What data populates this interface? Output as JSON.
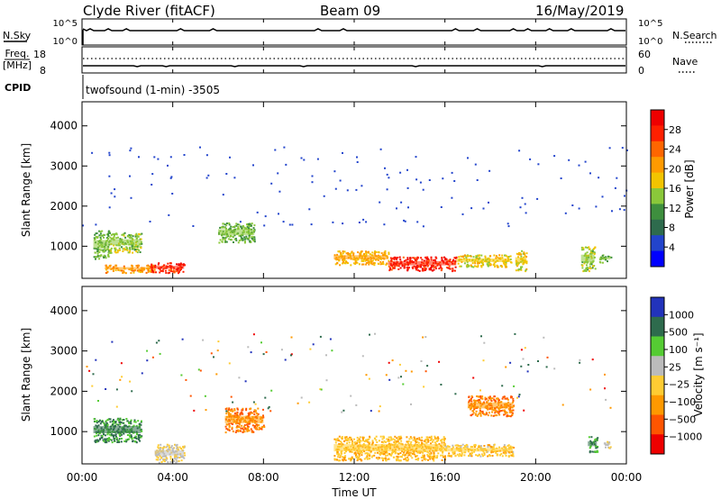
{
  "header": {
    "station": "Clyde River (fitACF)",
    "beam": "Beam 09",
    "date": "16/May/2019"
  },
  "summary_panels": {
    "nsky_label": "N.Sky",
    "nsearch_label": "N.Search",
    "freq_label_line1": "Freq.",
    "freq_label_line2": "[MHz]",
    "nave_label": "Nave",
    "cpid_label": "CPID",
    "cpid_text": "twofsound (1-min) -3505",
    "count_ticks": [
      "10^5",
      "10^0"
    ],
    "freq_ticks": [
      "18",
      "8"
    ],
    "nave_ticks": [
      "60",
      "0"
    ]
  },
  "time_axis": {
    "label": "Time UT",
    "ticks": [
      "00:00",
      "04:00",
      "08:00",
      "12:00",
      "16:00",
      "20:00",
      "00:00"
    ]
  },
  "colors": {
    "power_scale": [
      "#0000ff",
      "#2244cc",
      "#2e6b4d",
      "#3e8f3e",
      "#8ac83a",
      "#f2c400",
      "#ff9a00",
      "#ff6600",
      "#ff2000",
      "#ee0000"
    ],
    "velocity_scale": [
      "#ee0000",
      "#ff5500",
      "#ff9900",
      "#ffcc33",
      "#bbbbbb",
      "#55cc33",
      "#2e6b4d",
      "#2233bb"
    ]
  },
  "chart_data": [
    {
      "type": "heatmap",
      "panel": "power",
      "ylabel": "Slant Range [km]",
      "xlabel": "Time UT",
      "xlim_hours": [
        0,
        24
      ],
      "ylim_km": [
        200,
        4600
      ],
      "yticks": [
        1000,
        2000,
        3000,
        4000
      ],
      "colorbar_label": "Power [dB]",
      "colorbar_ticks": [
        "28",
        "24",
        "20",
        "16",
        "12",
        "8",
        "4"
      ],
      "colorbar_range": [
        0,
        30
      ],
      "regions": [
        {
          "t": [
            0.5,
            1.2
          ],
          "r": [
            700,
            1400
          ],
          "value": 12
        },
        {
          "t": [
            1.2,
            2.6
          ],
          "r": [
            850,
            1350
          ],
          "value": 14
        },
        {
          "t": [
            1.0,
            3.2
          ],
          "r": [
            350,
            550
          ],
          "value": 20
        },
        {
          "t": [
            3.0,
            4.5
          ],
          "r": [
            350,
            600
          ],
          "value": 26
        },
        {
          "t": [
            6.0,
            7.6
          ],
          "r": [
            1100,
            1600
          ],
          "value": 12
        },
        {
          "t": [
            11.1,
            13.5
          ],
          "r": [
            550,
            900
          ],
          "value": 18
        },
        {
          "t": [
            13.5,
            16.5
          ],
          "r": [
            400,
            750
          ],
          "value": 26
        },
        {
          "t": [
            16.5,
            18.9
          ],
          "r": [
            500,
            800
          ],
          "value": 16
        },
        {
          "t": [
            19.1,
            19.6
          ],
          "r": [
            400,
            900
          ],
          "value": 16
        },
        {
          "t": [
            22.0,
            22.6
          ],
          "r": [
            400,
            1000
          ],
          "value": 14
        },
        {
          "t": [
            22.8,
            23.3
          ],
          "r": [
            600,
            800
          ],
          "value": 12
        }
      ]
    },
    {
      "type": "heatmap",
      "panel": "velocity",
      "ylabel": "Slant Range [km]",
      "xlabel": "Time UT",
      "xlim_hours": [
        0,
        24
      ],
      "ylim_km": [
        200,
        4600
      ],
      "yticks": [
        1000,
        2000,
        3000,
        4000
      ],
      "colorbar_label": "Velocity [m s⁻¹]",
      "colorbar_ticks": [
        "1000",
        "500",
        "100",
        "25",
        "−25",
        "−100",
        "−500",
        "−1000"
      ],
      "colorbar_range": [
        -1000,
        1000
      ],
      "regions": [
        {
          "t": [
            0.5,
            2.6
          ],
          "r": [
            750,
            1350
          ],
          "value": 500
        },
        {
          "t": [
            3.2,
            4.5
          ],
          "r": [
            250,
            700
          ],
          "value": 0
        },
        {
          "t": [
            6.3,
            8.0
          ],
          "r": [
            1000,
            1600
          ],
          "value": -500
        },
        {
          "t": [
            11.1,
            16.0
          ],
          "r": [
            300,
            900
          ],
          "value": -200
        },
        {
          "t": [
            16.0,
            19.0
          ],
          "r": [
            400,
            700
          ],
          "value": -150
        },
        {
          "t": [
            17.0,
            19.0
          ],
          "r": [
            1400,
            1900
          ],
          "value": -500
        },
        {
          "t": [
            22.3,
            22.7
          ],
          "r": [
            500,
            900
          ],
          "value": 500
        },
        {
          "t": [
            23.0,
            23.3
          ],
          "r": [
            600,
            800
          ],
          "value": 100
        }
      ]
    }
  ]
}
